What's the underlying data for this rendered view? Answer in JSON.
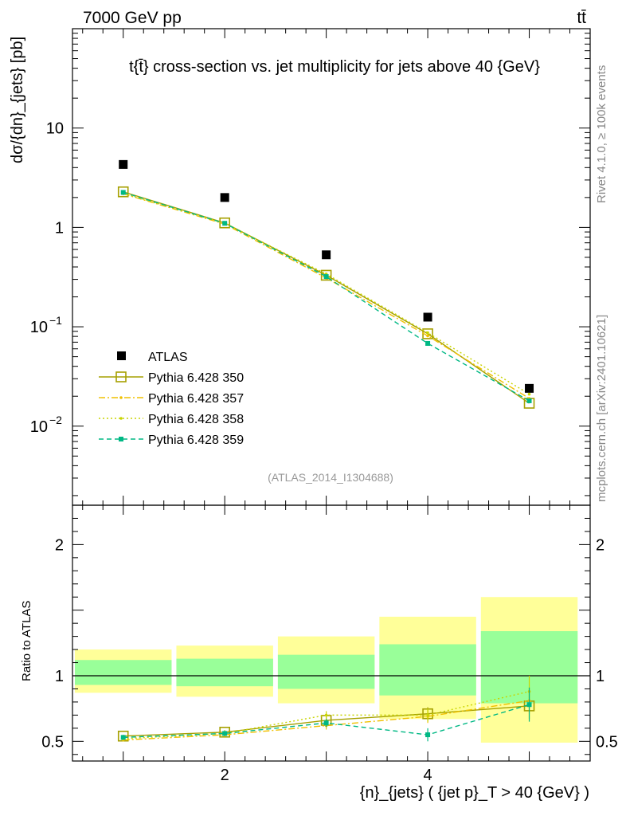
{
  "header": {
    "energy_label": "7000 GeV pp",
    "process_label": "tt̄",
    "plot_title": "t{t̄} cross-section vs. jet multiplicity for jets above 40 {GeV}",
    "analysis_id": "(ATLAS_2014_I1304688)",
    "side_label_top": "Rivet 4.1.0, ≥ 100k events",
    "side_label_bottom": "mcplots.cern.ch [arXiv:2401.10621]"
  },
  "chart_data": {
    "type": "scatter",
    "title": "t{t̄} cross-section vs. jet multiplicity for jets above 40 {GeV}",
    "xlabel": "{n}_{jets} ( {jet p}_T > 40 {GeV} )",
    "ylabel": "dσ/{dn}_{jets} [pb]",
    "ratio_ylabel": "Ratio to ATLAS",
    "xlim": [
      0.5,
      5.6
    ],
    "ylim": [
      0.0016,
      100
    ],
    "yscale": "log",
    "ratio_ylim": [
      0.35,
      2.3
    ],
    "x_ticks": [
      2,
      4
    ],
    "y_ticks": [
      {
        "value": 10,
        "label": "10"
      },
      {
        "value": 1,
        "label": "1"
      },
      {
        "value": 0.1,
        "label": "10",
        "exp": "−1"
      },
      {
        "value": 0.01,
        "label": "10",
        "exp": "−2"
      }
    ],
    "ratio_ticks": [
      0.5,
      1,
      2
    ],
    "ratio_tick_labels": [
      "0.5",
      "1",
      "2"
    ],
    "legend_position": "bottom-left",
    "x": [
      1,
      2,
      3,
      4,
      5
    ],
    "bins": [
      [
        0.5,
        1.5
      ],
      [
        1.5,
        2.5
      ],
      [
        2.5,
        3.5
      ],
      [
        3.5,
        4.5
      ],
      [
        4.5,
        5.5
      ]
    ],
    "data": {
      "name": "ATLAS",
      "values": [
        4.3,
        2.0,
        0.53,
        0.125,
        0.024
      ],
      "ratio_band_inner": [
        [
          0.93,
          1.12
        ],
        [
          0.92,
          1.13
        ],
        [
          0.9,
          1.16
        ],
        [
          0.85,
          1.24
        ],
        [
          0.79,
          1.34
        ]
      ],
      "ratio_band_outer": [
        [
          0.87,
          1.2
        ],
        [
          0.84,
          1.23
        ],
        [
          0.79,
          1.3
        ],
        [
          0.67,
          1.45
        ],
        [
          0.49,
          1.6
        ]
      ]
    },
    "series": [
      {
        "name": "Pythia 6.428 350",
        "values": [
          2.28,
          1.11,
          0.33,
          0.085,
          0.017
        ],
        "ratio": [
          0.54,
          0.57,
          0.66,
          0.71,
          0.77
        ],
        "ratio_err": [
          0.01,
          0.015,
          0.03,
          0.05,
          0.1
        ],
        "color": "#a6a000",
        "dash": "",
        "marker": "open-square"
      },
      {
        "name": "Pythia 6.428 357",
        "values": [
          2.18,
          1.08,
          0.31,
          0.081,
          0.019
        ],
        "ratio": [
          0.51,
          0.55,
          0.62,
          0.69,
          0.81
        ],
        "ratio_err": [
          0.01,
          0.015,
          0.03,
          0.05,
          0.1
        ],
        "color": "#f0c000",
        "dash": "8 3 2 3",
        "marker": "dot"
      },
      {
        "name": "Pythia 6.428 358",
        "values": [
          2.2,
          1.1,
          0.34,
          0.087,
          0.021
        ],
        "ratio": [
          0.52,
          0.56,
          0.7,
          0.7,
          0.88
        ],
        "ratio_err": [
          0.01,
          0.015,
          0.03,
          0.05,
          0.12
        ],
        "color": "#c8d400",
        "dash": "2 3",
        "marker": "dot"
      },
      {
        "name": "Pythia 6.428 359",
        "values": [
          2.25,
          1.1,
          0.32,
          0.068,
          0.018
        ],
        "ratio": [
          0.53,
          0.56,
          0.64,
          0.55,
          0.78
        ],
        "ratio_err": [
          0.01,
          0.015,
          0.03,
          0.05,
          0.13
        ],
        "color": "#00b884",
        "dash": "6 4",
        "marker": "filled-square"
      }
    ]
  }
}
